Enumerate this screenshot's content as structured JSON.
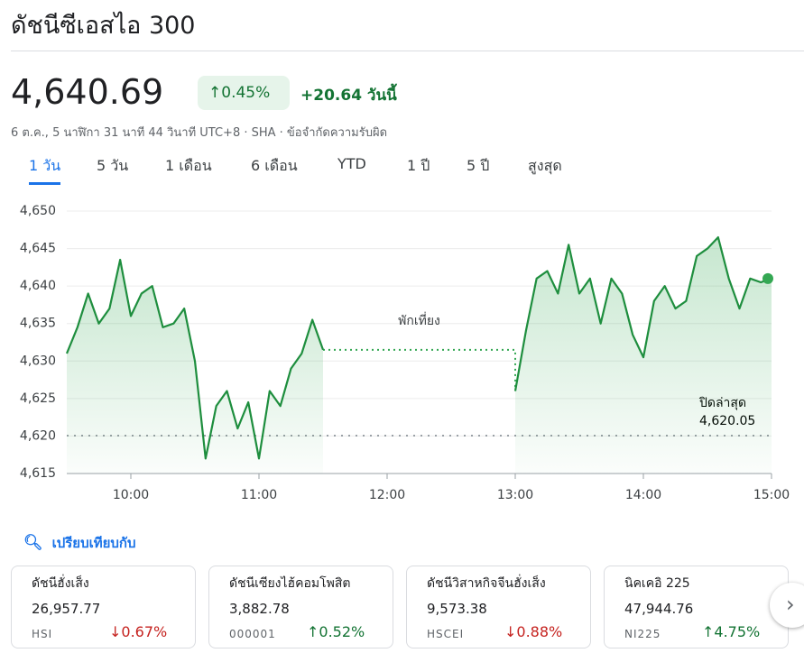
{
  "header": {
    "title": "ดัชนีซีเอสไอ 300",
    "price": "4,640.69",
    "change_pct": "0.45%",
    "change_abs": "+20.64 วันนี้",
    "subtitle": "6 ต.ค., 5 นาฬิกา 31 นาที 44 วินาที UTC+8 · SHA · ข้อจำกัดความรับผิด"
  },
  "tabs": [
    "1 วัน",
    "5 วัน",
    "1 เดือน",
    "6 เดือน",
    "YTD",
    "1 ปี",
    "5 ปี",
    "สูงสุด"
  ],
  "chart_data": {
    "type": "line",
    "x": [
      570,
      575,
      580,
      585,
      590,
      595,
      600,
      605,
      610,
      615,
      620,
      625,
      630,
      635,
      640,
      645,
      650,
      655,
      660,
      665,
      670,
      675,
      680,
      685,
      690,
      735,
      780,
      785,
      790,
      795,
      800,
      805,
      810,
      815,
      820,
      825,
      830,
      835,
      840,
      845,
      850,
      855,
      860,
      865,
      870,
      875,
      880,
      885,
      890,
      895,
      900
    ],
    "series": [
      {
        "name": "ดัชนีซีเอสไอ 300",
        "color": "#1e8e3e",
        "values": [
          4631,
          4634.5,
          4639,
          4635,
          4637,
          4643.5,
          4636,
          4639,
          4640,
          4634.5,
          4635,
          4637,
          4630,
          4617,
          4624,
          4626,
          4621,
          4624.5,
          4617,
          4626,
          4624,
          4629,
          4631,
          4635.5,
          4631.5,
          null,
          4626,
          4634,
          4641,
          4642,
          4639,
          4645.5,
          4639,
          4641,
          4635,
          4641,
          4639,
          4633.5,
          4630.5,
          4638,
          4640,
          4637,
          4638,
          4644,
          4645,
          4646.5,
          4641,
          4637,
          4641,
          4640.5,
          4641
        ]
      }
    ],
    "xlim": [
      570,
      900
    ],
    "xticks": [
      {
        "value": 600,
        "label": "10:00"
      },
      {
        "value": 660,
        "label": "11:00"
      },
      {
        "value": 720,
        "label": "12:00"
      },
      {
        "value": 780,
        "label": "13:00"
      },
      {
        "value": 840,
        "label": "14:00"
      },
      {
        "value": 900,
        "label": "15:00"
      }
    ],
    "ylim": [
      4615,
      4650
    ],
    "yticks": [
      {
        "value": 4615,
        "label": "4,615"
      },
      {
        "value": 4620,
        "label": "4,620"
      },
      {
        "value": 4625,
        "label": "4,625"
      },
      {
        "value": 4630,
        "label": "4,630"
      },
      {
        "value": 4635,
        "label": "4,635"
      },
      {
        "value": 4640,
        "label": "4,640"
      },
      {
        "value": 4645,
        "label": "4,645"
      },
      {
        "value": 4650,
        "label": "4,650"
      }
    ],
    "grid": true,
    "break_label": "พักเที่ยง",
    "previous_close": {
      "label": "ปิดล่าสุด",
      "value": 4620.05,
      "value_label": "4,620.05"
    }
  },
  "compare": {
    "title": "เปรียบเทียบกับ",
    "cards": [
      {
        "name": "ดัชนีฮั่งเส็ง",
        "price": "26,957.77",
        "code": "HSI",
        "change": "0.67%",
        "direction": "down"
      },
      {
        "name": "ดัชนีเซียงไฮ้คอมโพสิต",
        "price": "3,882.78",
        "code": "000001",
        "change": "0.52%",
        "direction": "up"
      },
      {
        "name": "ดัชนีวิสาหกิจจีนฮั่งเส็ง",
        "price": "9,573.38",
        "code": "HSCEI",
        "change": "0.88%",
        "direction": "down"
      },
      {
        "name": "นิคเคอิ 225",
        "price": "47,944.76",
        "code": "NI225",
        "change": "4.75%",
        "direction": "up"
      }
    ]
  }
}
